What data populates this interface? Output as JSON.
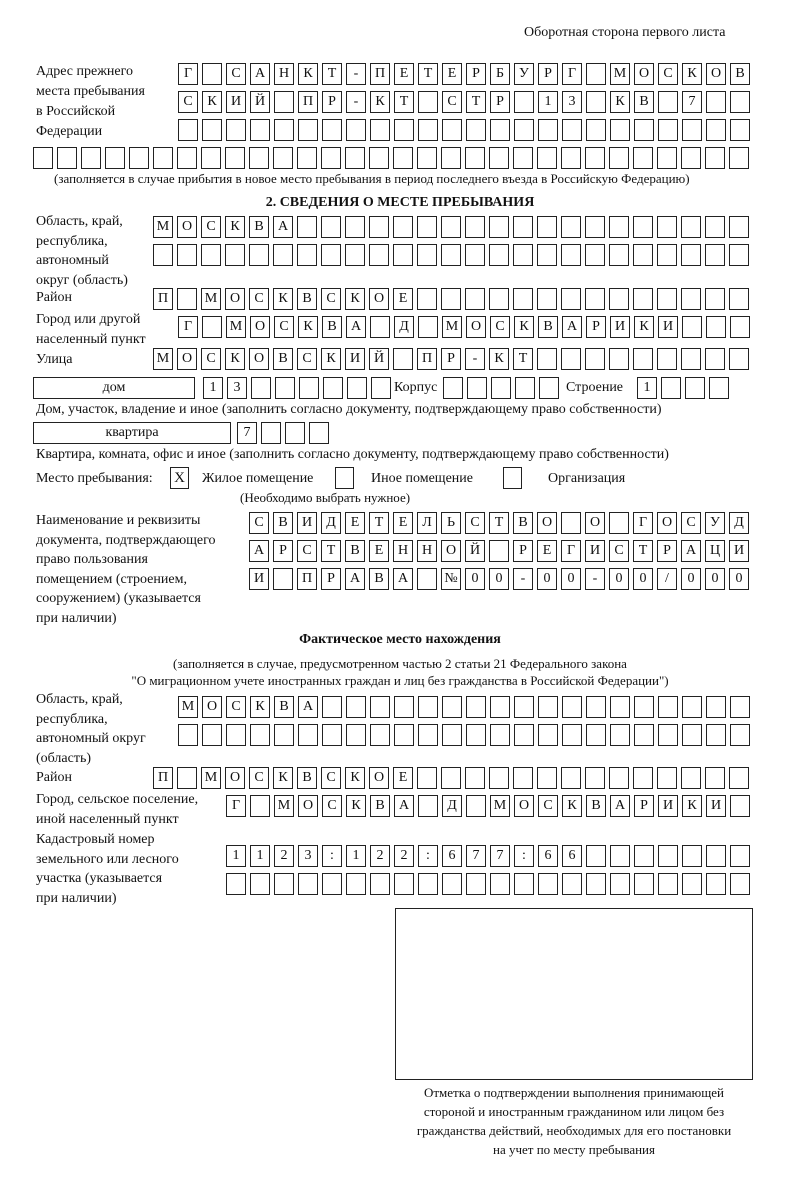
{
  "header": {
    "page_side": "Оборотная сторона первого листа"
  },
  "prev_address": {
    "label": [
      "Адрес прежнего",
      "места пребывания",
      "в Российской",
      "Федерации"
    ],
    "rows": [
      [
        "Г",
        "",
        "С",
        "А",
        "Н",
        "К",
        "Т",
        "-",
        "П",
        "Е",
        "Т",
        "Е",
        "Р",
        "Б",
        "У",
        "Р",
        "Г",
        "",
        "М",
        "О",
        "С",
        "К",
        "О",
        "В"
      ],
      [
        "С",
        "К",
        "И",
        "Й",
        "",
        "П",
        "Р",
        "-",
        "К",
        "Т",
        "",
        "С",
        "Т",
        "Р",
        "",
        "1",
        "3",
        "",
        "К",
        "В",
        "",
        "7",
        "",
        ""
      ],
      [
        "",
        "",
        "",
        "",
        "",
        "",
        "",
        "",
        "",
        "",
        "",
        "",
        "",
        "",
        "",
        "",
        "",
        "",
        "",
        "",
        "",
        "",
        "",
        ""
      ],
      [
        "",
        "",
        "",
        "",
        "",
        "",
        "",
        "",
        "",
        "",
        "",
        "",
        "",
        "",
        "",
        "",
        "",
        "",
        "",
        "",
        "",
        "",
        "",
        "",
        "",
        "",
        "",
        "",
        "",
        ""
      ]
    ],
    "note": "(заполняется в случае прибытия в новое место пребывания в период последнего въезда в Российскую Федерацию)"
  },
  "section2": {
    "title": "2. СВЕДЕНИЯ О МЕСТЕ ПРЕБЫВАНИЯ",
    "region": {
      "label": [
        "Область, край,",
        "республика,",
        "автономный",
        "округ (область)"
      ],
      "rows": [
        [
          "М",
          "О",
          "С",
          "К",
          "В",
          "А",
          "",
          "",
          "",
          "",
          "",
          "",
          "",
          "",
          "",
          "",
          "",
          "",
          "",
          "",
          "",
          "",
          "",
          "",
          ""
        ],
        [
          "",
          "",
          "",
          "",
          "",
          "",
          "",
          "",
          "",
          "",
          "",
          "",
          "",
          "",
          "",
          "",
          "",
          "",
          "",
          "",
          "",
          "",
          "",
          "",
          ""
        ]
      ]
    },
    "district": {
      "label": [
        "Район"
      ],
      "row": [
        "П",
        "",
        "М",
        "О",
        "С",
        "К",
        "В",
        "С",
        "К",
        "О",
        "Е",
        "",
        "",
        "",
        "",
        "",
        "",
        "",
        "",
        "",
        "",
        "",
        "",
        "",
        ""
      ]
    },
    "city": {
      "label": [
        "Город или другой",
        "населенный пункт"
      ],
      "row": [
        "Г",
        "",
        "М",
        "О",
        "С",
        "К",
        "В",
        "А",
        "",
        "Д",
        "",
        "М",
        "О",
        "С",
        "К",
        "В",
        "А",
        "Р",
        "И",
        "К",
        "И",
        "",
        "",
        ""
      ]
    },
    "street": {
      "label": [
        "Улица"
      ],
      "row": [
        "М",
        "О",
        "С",
        "К",
        "О",
        "В",
        "С",
        "К",
        "И",
        "Й",
        "",
        "П",
        "Р",
        "-",
        "К",
        "Т",
        "",
        "",
        "",
        "",
        "",
        "",
        "",
        "",
        ""
      ]
    },
    "house": {
      "type": "дом",
      "number": [
        "1",
        "3",
        "",
        "",
        "",
        "",
        "",
        ""
      ],
      "korpus_label": "Корпус",
      "korpus": [
        "",
        "",
        "",
        "",
        ""
      ],
      "building_label": "Строение",
      "building": [
        "1",
        "",
        "",
        ""
      ],
      "note": "Дом, участок, владение и иное (заполнить согласно документу, подтверждающему право собственности)"
    },
    "apartment": {
      "type": "квартира",
      "number": [
        "7",
        "",
        "",
        ""
      ],
      "note": "Квартира, комната, офис и иное (заполнить согласно документу, подтверждающему право собственности)"
    },
    "stay_place": {
      "label": "Место пребывания:",
      "options": [
        {
          "label": "Жилое помещение",
          "checked": true,
          "mark": "X"
        },
        {
          "label": "Иное помещение",
          "checked": false,
          "mark": ""
        },
        {
          "label": "Организация",
          "checked": false,
          "mark": ""
        }
      ],
      "note": "(Необходимо выбрать нужное)"
    },
    "document": {
      "label": [
        "Наименование и реквизиты",
        "документа, подтверждающего",
        "право пользования",
        "помещением (строением,",
        "сооружением) (указывается",
        "при наличии)"
      ],
      "rows": [
        [
          "С",
          "В",
          "И",
          "Д",
          "Е",
          "Т",
          "Е",
          "Л",
          "Ь",
          "С",
          "Т",
          "В",
          "О",
          "",
          "О",
          "",
          "Г",
          "О",
          "С",
          "У",
          "Д"
        ],
        [
          "А",
          "Р",
          "С",
          "Т",
          "В",
          "Е",
          "Н",
          "Н",
          "О",
          "Й",
          "",
          "Р",
          "Е",
          "Г",
          "И",
          "С",
          "Т",
          "Р",
          "А",
          "Ц",
          "И"
        ],
        [
          "И",
          "",
          "П",
          "Р",
          "А",
          "В",
          "А",
          "",
          "№",
          "0",
          "0",
          "-",
          "0",
          "0",
          "-",
          "0",
          "0",
          "/",
          "0",
          "0",
          "0"
        ]
      ]
    }
  },
  "actual": {
    "title": "Фактическое место нахождения",
    "note": [
      "(заполняется в случае, предусмотренном частью 2 статьи 21 Федерального закона",
      "\"О миграционном учете иностранных граждан и лиц без гражданства в Российской Федерации\")"
    ],
    "region": {
      "label": [
        "Область, край,",
        "республика,",
        "автономный округ",
        "(область)"
      ],
      "rows": [
        [
          "М",
          "О",
          "С",
          "К",
          "В",
          "А",
          "",
          "",
          "",
          "",
          "",
          "",
          "",
          "",
          "",
          "",
          "",
          "",
          "",
          "",
          "",
          "",
          "",
          ""
        ],
        [
          "",
          "",
          "",
          "",
          "",
          "",
          "",
          "",
          "",
          "",
          "",
          "",
          "",
          "",
          "",
          "",
          "",
          "",
          "",
          "",
          "",
          "",
          "",
          ""
        ]
      ]
    },
    "district": {
      "label": [
        "Район"
      ],
      "row": [
        "П",
        "",
        "М",
        "О",
        "С",
        "К",
        "В",
        "С",
        "К",
        "О",
        "Е",
        "",
        "",
        "",
        "",
        "",
        "",
        "",
        "",
        "",
        "",
        "",
        "",
        "",
        ""
      ]
    },
    "city": {
      "label": [
        "Город, сельское поселение,",
        "иной населенный пункт"
      ],
      "row": [
        "Г",
        "",
        "М",
        "О",
        "С",
        "К",
        "В",
        "А",
        "",
        "Д",
        "",
        "М",
        "О",
        "С",
        "К",
        "В",
        "А",
        "Р",
        "И",
        "К",
        "И",
        ""
      ]
    },
    "cadastral": {
      "label": [
        "Кадастровый номер",
        "земельного или лесного",
        "участка (указывается",
        "при наличии)"
      ],
      "rows": [
        [
          "1",
          "1",
          "2",
          "3",
          ":",
          "1",
          "2",
          "2",
          ":",
          "6",
          "7",
          "7",
          ":",
          "6",
          "6",
          "",
          "",
          "",
          "",
          "",
          "",
          ""
        ],
        [
          "",
          "",
          "",
          "",
          "",
          "",
          "",
          "",
          "",
          "",
          "",
          "",
          "",
          "",
          "",
          "",
          "",
          "",
          "",
          "",
          "",
          ""
        ]
      ]
    }
  },
  "stamp": {
    "caption": [
      "Отметка о подтверждении выполнения принимающей",
      "стороной и иностранным гражданином или лицом без",
      "гражданства действий, необходимых для его постановки",
      "на учет по месту пребывания"
    ]
  }
}
